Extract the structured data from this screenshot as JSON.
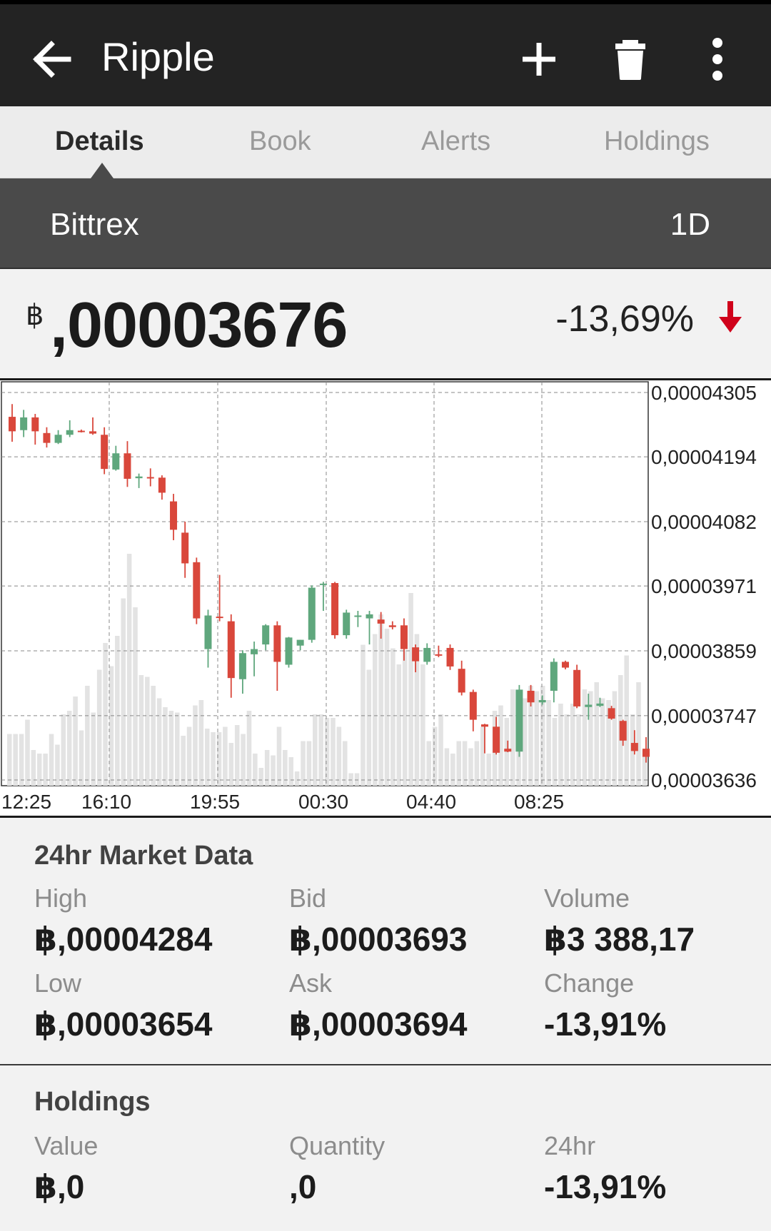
{
  "appbar": {
    "title": "Ripple",
    "back_icon": "arrow-left-icon",
    "actions": [
      "add-icon",
      "delete-icon",
      "more-vert-icon"
    ]
  },
  "tabs": [
    {
      "label": "Details",
      "active": true
    },
    {
      "label": "Book",
      "active": false
    },
    {
      "label": "Alerts",
      "active": false
    },
    {
      "label": "Holdings",
      "active": false
    }
  ],
  "exchange": {
    "name": "Bittrex",
    "period": "1D"
  },
  "price": {
    "symbol": "฿",
    "value": ",00003676",
    "change": "-13,69%",
    "direction_icon": "arrow-down-icon",
    "down_color": "#d0021b"
  },
  "chart_data": {
    "type": "candlestick",
    "x_ticks": [
      "12:25",
      "16:10",
      "19:55",
      "00:30",
      "04:40",
      "08:25"
    ],
    "y_ticks": [
      "0,00004305",
      "0,00004194",
      "0,00004082",
      "0,00003971",
      "0,00003859",
      "0,00003747",
      "0,00003636"
    ],
    "ylim": [
      3.636e-05,
      4.305e-05
    ],
    "grid": true,
    "up_color": "#5fa77d",
    "down_color": "#d9473b",
    "volume_color": "#e3e3e3",
    "candles": [
      {
        "o": 4.263e-05,
        "h": 4.285e-05,
        "l": 4.22e-05,
        "c": 4.238e-05
      },
      {
        "o": 4.24e-05,
        "h": 4.275e-05,
        "l": 4.228e-05,
        "c": 4.262e-05
      },
      {
        "o": 4.262e-05,
        "h": 4.268e-05,
        "l": 4.215e-05,
        "c": 4.238e-05
      },
      {
        "o": 4.235e-05,
        "h": 4.245e-05,
        "l": 4.21e-05,
        "c": 4.218e-05
      },
      {
        "o": 4.218e-05,
        "h": 4.24e-05,
        "l": 4.216e-05,
        "c": 4.232e-05
      },
      {
        "o": 4.232e-05,
        "h": 4.257e-05,
        "l": 4.228e-05,
        "c": 4.24e-05
      },
      {
        "o": 4.239e-05,
        "h": 4.241e-05,
        "l": 4.236e-05,
        "c": 4.238e-05
      },
      {
        "o": 4.238e-05,
        "h": 4.262e-05,
        "l": 4.232e-05,
        "c": 4.234e-05
      },
      {
        "o": 4.232e-05,
        "h": 4.245e-05,
        "l": 4.164e-05,
        "c": 4.173e-05
      },
      {
        "o": 4.172e-05,
        "h": 4.213e-05,
        "l": 4.17e-05,
        "c": 4.2e-05
      },
      {
        "o": 4.2e-05,
        "h": 4.221e-05,
        "l": 4.142e-05,
        "c": 4.156e-05
      },
      {
        "o": 4.157e-05,
        "h": 4.165e-05,
        "l": 4.14e-05,
        "c": 4.16e-05
      },
      {
        "o": 4.159e-05,
        "h": 4.174e-05,
        "l": 4.143e-05,
        "c": 4.158e-05
      },
      {
        "o": 4.158e-05,
        "h": 4.162e-05,
        "l": 4.12e-05,
        "c": 4.132e-05
      },
      {
        "o": 4.117e-05,
        "h": 4.13e-05,
        "l": 4.05e-05,
        "c": 4.068e-05
      },
      {
        "o": 4.063e-05,
        "h": 4.082e-05,
        "l": 3.985e-05,
        "c": 4.01e-05
      },
      {
        "o": 4.012e-05,
        "h": 4.02e-05,
        "l": 3.905e-05,
        "c": 3.915e-05
      },
      {
        "o": 3.862e-05,
        "h": 3.93e-05,
        "l": 3.83e-05,
        "c": 3.92e-05
      },
      {
        "o": 3.918e-05,
        "h": 3.99e-05,
        "l": 3.91e-05,
        "c": 3.916e-05
      },
      {
        "o": 3.91e-05,
        "h": 3.922e-05,
        "l": 3.778e-05,
        "c": 3.812e-05
      },
      {
        "o": 3.81e-05,
        "h": 3.86e-05,
        "l": 3.785e-05,
        "c": 3.855e-05
      },
      {
        "o": 3.853e-05,
        "h": 3.875e-05,
        "l": 3.815e-05,
        "c": 3.862e-05
      },
      {
        "o": 3.87e-05,
        "h": 3.905e-05,
        "l": 3.86e-05,
        "c": 3.903e-05
      },
      {
        "o": 3.903e-05,
        "h": 3.91e-05,
        "l": 3.79e-05,
        "c": 3.84e-05
      },
      {
        "o": 3.835e-05,
        "h": 3.883e-05,
        "l": 3.83e-05,
        "c": 3.882e-05
      },
      {
        "o": 3.868e-05,
        "h": 3.878e-05,
        "l": 3.86e-05,
        "c": 3.878e-05
      },
      {
        "o": 3.878e-05,
        "h": 3.972e-05,
        "l": 3.873e-05,
        "c": 3.968e-05
      },
      {
        "o": 3.975e-05,
        "h": 3.978e-05,
        "l": 3.928e-05,
        "c": 3.975e-05
      },
      {
        "o": 3.976e-05,
        "h": 3.978e-05,
        "l": 3.88e-05,
        "c": 3.886e-05
      },
      {
        "o": 3.886e-05,
        "h": 3.93e-05,
        "l": 3.88e-05,
        "c": 3.925e-05
      },
      {
        "o": 3.918e-05,
        "h": 3.928e-05,
        "l": 3.9e-05,
        "c": 3.92e-05
      },
      {
        "o": 3.915e-05,
        "h": 3.928e-05,
        "l": 3.87e-05,
        "c": 3.922e-05
      },
      {
        "o": 3.913e-05,
        "h": 3.926e-05,
        "l": 3.88e-05,
        "c": 3.906e-05
      },
      {
        "o": 3.903e-05,
        "h": 3.91e-05,
        "l": 3.896e-05,
        "c": 3.9e-05
      },
      {
        "o": 3.903e-05,
        "h": 3.915e-05,
        "l": 3.842e-05,
        "c": 3.862e-05
      },
      {
        "o": 3.865e-05,
        "h": 3.87e-05,
        "l": 3.822e-05,
        "c": 3.841e-05
      },
      {
        "o": 3.84e-05,
        "h": 3.872e-05,
        "l": 3.835e-05,
        "c": 3.864e-05
      },
      {
        "o": 3.853e-05,
        "h": 3.868e-05,
        "l": 3.848e-05,
        "c": 3.852e-05
      },
      {
        "o": 3.864e-05,
        "h": 3.87e-05,
        "l": 3.826e-05,
        "c": 3.832e-05
      },
      {
        "o": 3.828e-05,
        "h": 3.842e-05,
        "l": 3.782e-05,
        "c": 3.787e-05
      },
      {
        "o": 3.788e-05,
        "h": 3.792e-05,
        "l": 3.72e-05,
        "c": 3.74e-05
      },
      {
        "o": 3.732e-05,
        "h": 3.733e-05,
        "l": 3.682e-05,
        "c": 3.728e-05
      },
      {
        "o": 3.728e-05,
        "h": 3.745e-05,
        "l": 3.68e-05,
        "c": 3.683e-05
      },
      {
        "o": 3.69e-05,
        "h": 3.704e-05,
        "l": 3.684e-05,
        "c": 3.685e-05
      },
      {
        "o": 3.685e-05,
        "h": 3.8e-05,
        "l": 3.676e-05,
        "c": 3.792e-05
      },
      {
        "o": 3.79e-05,
        "h": 3.8e-05,
        "l": 3.763e-05,
        "c": 3.77e-05
      },
      {
        "o": 3.77e-05,
        "h": 3.782e-05,
        "l": 3.766e-05,
        "c": 3.774e-05
      },
      {
        "o": 3.79e-05,
        "h": 3.846e-05,
        "l": 3.77e-05,
        "c": 3.84e-05
      },
      {
        "o": 3.84e-05,
        "h": 3.842e-05,
        "l": 3.827e-05,
        "c": 3.83e-05
      },
      {
        "o": 3.826e-05,
        "h": 3.835e-05,
        "l": 3.76e-05,
        "c": 3.763e-05
      },
      {
        "o": 3.762e-05,
        "h": 3.785e-05,
        "l": 3.74e-05,
        "c": 3.766e-05
      },
      {
        "o": 3.764e-05,
        "h": 3.778e-05,
        "l": 3.762e-05,
        "c": 3.768e-05
      },
      {
        "o": 3.76e-05,
        "h": 3.764e-05,
        "l": 3.74e-05,
        "c": 3.742e-05
      },
      {
        "o": 3.738e-05,
        "h": 3.74e-05,
        "l": 3.695e-05,
        "c": 3.704e-05
      },
      {
        "o": 3.7e-05,
        "h": 3.722e-05,
        "l": 3.68e-05,
        "c": 3.686e-05
      },
      {
        "o": 3.69e-05,
        "h": 3.71e-05,
        "l": 3.666e-05,
        "c": 3.676e-05
      }
    ],
    "volumes": [
      7,
      7,
      7,
      9,
      5,
      4,
      3,
      7,
      4,
      10,
      12,
      10,
      6,
      13,
      10,
      15,
      20,
      16,
      20,
      26,
      34,
      25,
      15,
      15,
      14,
      12,
      11,
      10,
      10,
      7,
      8,
      11,
      12,
      8,
      7,
      7,
      8,
      6,
      8,
      7,
      10,
      4,
      2,
      5,
      4,
      8,
      5,
      4,
      1,
      6,
      6,
      10,
      10,
      9,
      9,
      8,
      6,
      1,
      1,
      20,
      16,
      21,
      24,
      22,
      19,
      17,
      19,
      27,
      21,
      17,
      6,
      8,
      10,
      5,
      4,
      6,
      6,
      5,
      6,
      8,
      4,
      10,
      11,
      9,
      13,
      13,
      12,
      14,
      13,
      14,
      12,
      9,
      11,
      10,
      11,
      10,
      13,
      13,
      14,
      12,
      12,
      13,
      15,
      18,
      10,
      14,
      5
    ],
    "volume_bars": [
      29,
      29,
      29,
      37,
      20,
      18,
      18,
      29,
      23,
      40,
      42,
      50,
      31,
      56,
      41,
      65,
      80,
      67,
      84,
      105,
      130,
      100,
      62,
      61,
      56,
      49,
      44,
      42,
      41,
      28,
      33,
      45,
      48,
      32,
      30,
      30,
      33,
      24,
      34,
      29,
      42,
      18,
      10,
      20,
      17,
      33,
      20,
      16,
      8,
      25,
      25,
      40,
      40,
      38,
      38,
      33,
      25,
      7,
      7,
      79,
      65,
      85,
      96,
      88,
      77,
      68,
      76,
      108,
      85,
      68,
      25,
      33,
      40,
      21,
      18,
      25,
      25,
      21,
      25,
      33,
      18,
      42,
      45,
      38,
      54,
      53,
      49,
      56,
      53,
      56,
      48,
      38,
      46,
      40,
      46,
      40,
      54,
      53,
      58,
      49,
      48,
      53,
      62,
      73,
      40,
      58,
      20
    ]
  },
  "market": {
    "heading": "24hr Market Data",
    "cells": [
      {
        "label": "High",
        "value": "฿,00004284"
      },
      {
        "label": "Bid",
        "value": "฿,00003693"
      },
      {
        "label": "Volume",
        "value": "฿3 388,17"
      },
      {
        "label": "Low",
        "value": "฿,00003654"
      },
      {
        "label": "Ask",
        "value": "฿,00003694"
      },
      {
        "label": "Change",
        "value": "-13,91%"
      }
    ]
  },
  "holdings": {
    "heading": "Holdings",
    "cells": [
      {
        "label": "Value",
        "value": "฿,0"
      },
      {
        "label": "Quantity",
        "value": ",0"
      },
      {
        "label": "24hr",
        "value": "-13,91%"
      }
    ]
  }
}
